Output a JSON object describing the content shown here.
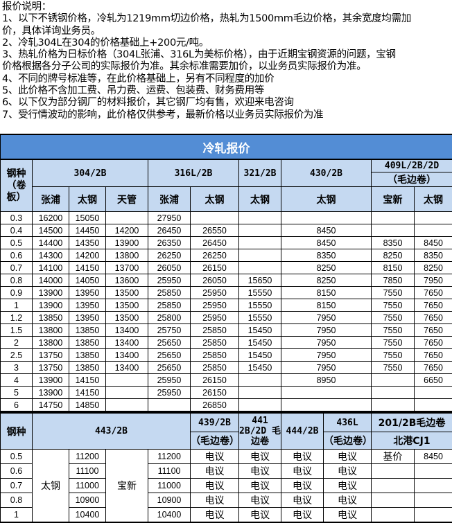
{
  "notes": [
    "报价说明：",
    "1、以下不锈钢价格，冷轧为1219mm切边价格，热轧为1500mm毛边价格，其余宽度均需加",
    "价，具体详询业务员。",
    "2、冷轧304L在304的价格基础上+200元/吨。",
    "3、热轧价格为日标价格（304L张浦、316L为美标价格），由于近期宝钢资源的问题，宝钢",
    "价格根据各分子公司的实际报价为准。其余标准需要加价，以业务员实际报价为准。",
    "4、不同的牌号标准等，在此价格基础上，另有不同程度的加价",
    "5、此价格不含加工费、吊力费、运费、包装费、财务费用等",
    "6、以下仅为部分钢厂的材料报价，其它钢厂均有售，欢迎来电咨询",
    "7、受行情波动的影响，此价格仅供参考，最新价格以业务员实际报价为准"
  ],
  "colors": {
    "title_bg": "#538DD5",
    "header_bg": "#C5D9F1"
  },
  "cold_rolled": {
    "title": "冷轧报价",
    "grade_header": "钢种（卷板）",
    "groups": [
      "304/2B",
      "316L/2B",
      "321/2B",
      "430/2B",
      "409L/2B/2D",
      "（毛边卷）"
    ],
    "mills": [
      "张浦",
      "太钢",
      "天管",
      "张浦",
      "太钢",
      "太钢",
      "太钢",
      "宝新",
      "太钢"
    ],
    "rows": [
      [
        "0.3",
        "16200",
        "15050",
        "",
        "27950",
        "",
        "",
        "",
        "",
        ""
      ],
      [
        "0.4",
        "14500",
        "14450",
        "14200",
        "26450",
        "26550",
        "",
        "8450",
        "",
        ""
      ],
      [
        "0.5",
        "14400",
        "14350",
        "13900",
        "26350",
        "26450",
        "",
        "8450",
        "8350",
        "8450"
      ],
      [
        "0.6",
        "14300",
        "14200",
        "13800",
        "26250",
        "26250",
        "",
        "8350",
        "8250",
        "8350"
      ],
      [
        "0.7",
        "14100",
        "14150",
        "13700",
        "26050",
        "26150",
        "",
        "8250",
        "8150",
        "8250"
      ],
      [
        "0.8",
        "14000",
        "14050",
        "13600",
        "25950",
        "26050",
        "15650",
        "8250",
        "7850",
        "7950"
      ],
      [
        "0.9",
        "13900",
        "13950",
        "13500",
        "25850",
        "25950",
        "15550",
        "8150",
        "7550",
        "7650"
      ],
      [
        "1",
        "13900",
        "13950",
        "13500",
        "25850",
        "25950",
        "15550",
        "8150",
        "7550",
        "7650"
      ],
      [
        "1.2",
        "13850",
        "13950",
        "13500",
        "25800",
        "25950",
        "15550",
        "7950",
        "7550",
        "7650"
      ],
      [
        "1.5",
        "13800",
        "13850",
        "13400",
        "25750",
        "25850",
        "15450",
        "7950",
        "7550",
        "7650"
      ],
      [
        "2",
        "13800",
        "13850",
        "13400",
        "25650",
        "25850",
        "15450",
        "7950",
        "7550",
        "7650"
      ],
      [
        "2.5",
        "13750",
        "13850",
        "13400",
        "25650",
        "25850",
        "15450",
        "7950",
        "7550",
        "7650"
      ],
      [
        "3",
        "13750",
        "13850",
        "13400",
        "25650",
        "25850",
        "15450",
        "7950",
        "7550",
        "7650"
      ],
      [
        "4",
        "13900",
        "14150",
        "",
        "25950",
        "26150",
        "",
        "8950",
        "",
        "6650"
      ],
      [
        "5",
        "13900",
        "14150",
        "",
        "25950",
        "26150",
        "",
        "",
        "",
        ""
      ],
      [
        "6",
        "14750",
        "14850",
        "",
        "",
        "26850",
        "",
        "",
        "",
        ""
      ]
    ]
  },
  "ferritic": {
    "grade_header": "钢种",
    "h443": "443/2B",
    "h439": "439/2B",
    "h439_sub": "（毛边卷）",
    "h441": "441 2B/2D 毛边卷",
    "h444": "444/2B",
    "h436": "436L",
    "h436_sub": "（毛边卷）",
    "h201": "201/2B毛边卷",
    "h201_sub": "北港CJ1",
    "mill_a": "太钢",
    "mill_b": "宝新",
    "base_label": "基价",
    "base_value": "8450",
    "rows": [
      [
        "0.5",
        "11200",
        "11200",
        "电议",
        "电议",
        "电议",
        "电议"
      ],
      [
        "0.6",
        "11100",
        "11100",
        "电议",
        "电议",
        "电议",
        "电议"
      ],
      [
        "0.7",
        "11000",
        "11000",
        "电议",
        "电议",
        "电议",
        "电议"
      ],
      [
        "0.8",
        "10900",
        "10900",
        "电议",
        "电议",
        "电议",
        "电议"
      ],
      [
        "1",
        "10400",
        "10400",
        "电议",
        "电议",
        "电议",
        "电议"
      ]
    ]
  }
}
